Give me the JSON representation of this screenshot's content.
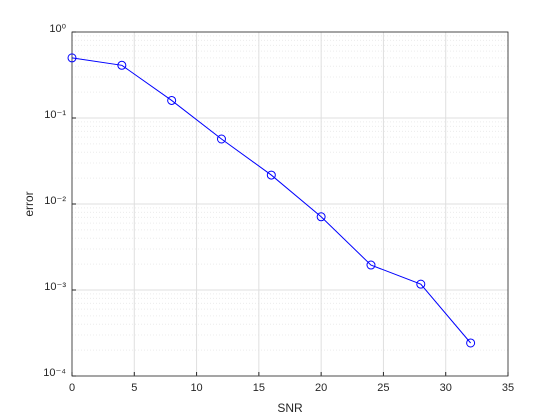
{
  "chart_data": {
    "type": "line",
    "x_label": "SNR",
    "y_label": "error",
    "x": [
      0,
      4,
      8,
      12,
      16,
      20,
      24,
      28,
      32
    ],
    "series": [
      {
        "color": "#0000ff",
        "marker": "circle",
        "values": [
          0.5,
          0.41,
          0.16,
          0.057,
          0.0217,
          0.0071,
          0.00195,
          0.00117,
          0.000242
        ]
      }
    ],
    "xlim": [
      0,
      35
    ],
    "xticks": [
      0,
      5,
      10,
      15,
      20,
      25,
      30,
      35
    ],
    "ylim": [
      0.0001,
      1
    ],
    "yscale": "log",
    "yticks": [
      {
        "value": 0.0001,
        "label": "10⁻⁴"
      },
      {
        "value": 0.001,
        "label": "10⁻³"
      },
      {
        "value": 0.01,
        "label": "10⁻²"
      },
      {
        "value": 0.1,
        "label": "10⁻¹"
      },
      {
        "value": 1,
        "label": "10⁰"
      }
    ],
    "grid": true,
    "minor_grid": true
  }
}
